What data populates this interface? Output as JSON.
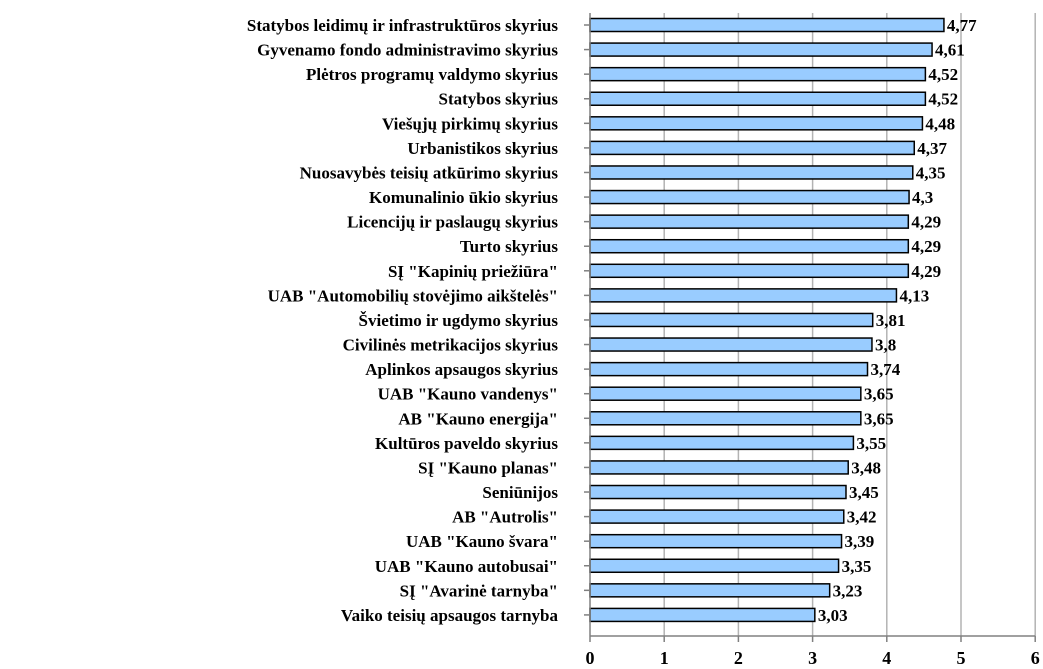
{
  "chart_data": {
    "type": "bar",
    "orientation": "horizontal",
    "categories": [
      "Statybos leidimų ir infrastruktūros skyrius",
      "Gyvenamo fondo administravimo skyrius",
      "Plėtros programų valdymo skyrius",
      "Statybos skyrius",
      "Viešųjų pirkimų skyrius",
      "Urbanistikos skyrius",
      "Nuosavybės teisių atkūrimo skyrius",
      "Komunalinio ūkio skyrius",
      "Licencijų ir paslaugų skyrius",
      "Turto skyrius",
      "SĮ \"Kapinių priežiūra\"",
      "UAB \"Automobilių stovėjimo aikštelės\"",
      "Švietimo ir ugdymo skyrius",
      "Civilinės metrikacijos skyrius",
      "Aplinkos apsaugos skyrius",
      "UAB \"Kauno vandenys\"",
      "AB \"Kauno energija\"",
      "Kultūros paveldo skyrius",
      "SĮ \"Kauno planas\"",
      "Seniūnijos",
      "AB \"Autrolis\"",
      "UAB \"Kauno švara\"",
      "UAB \"Kauno autobusai\"",
      "SĮ \"Avarinė tarnyba\"",
      "Vaiko teisių apsaugos tarnyba"
    ],
    "values": [
      4.77,
      4.61,
      4.52,
      4.52,
      4.48,
      4.37,
      4.35,
      4.3,
      4.29,
      4.29,
      4.29,
      4.13,
      3.81,
      3.8,
      3.74,
      3.65,
      3.65,
      3.55,
      3.48,
      3.45,
      3.42,
      3.39,
      3.35,
      3.23,
      3.03
    ],
    "value_labels": [
      "4,77",
      "4,61",
      "4,52",
      "4,52",
      "4,48",
      "4,37",
      "4,35",
      "4,3",
      "4,29",
      "4,29",
      "4,29",
      "4,13",
      "3,81",
      "3,8",
      "3,74",
      "3,65",
      "3,65",
      "3,55",
      "3,48",
      "3,45",
      "3,42",
      "3,39",
      "3,35",
      "3,23",
      "3,03"
    ],
    "xlim": [
      0,
      6
    ],
    "xticks": [
      "0",
      "1",
      "2",
      "3",
      "4",
      "5",
      "6"
    ],
    "grid": "vertical",
    "legend": "none",
    "bar_color": "#99ccff",
    "bar_border_color": "#000000",
    "grid_color": "#b3b3b3"
  }
}
